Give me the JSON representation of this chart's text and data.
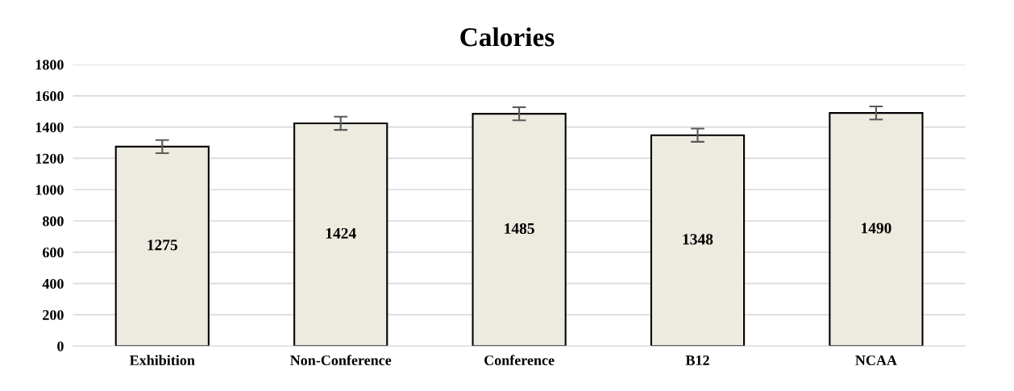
{
  "chart_data": {
    "type": "bar",
    "title": "Calories",
    "categories": [
      "Exhibition",
      "Non-Conference",
      "Conference",
      "B12",
      "NCAA"
    ],
    "values": [
      1275,
      1424,
      1485,
      1348,
      1490
    ],
    "errors": [
      42,
      42,
      42,
      42,
      42
    ],
    "color": "#edeae0",
    "ylim": [
      0,
      1800
    ],
    "yticks": [
      0,
      200,
      400,
      600,
      800,
      1000,
      1200,
      1400,
      1600,
      1800
    ],
    "grid": "y",
    "data_labels": true
  }
}
